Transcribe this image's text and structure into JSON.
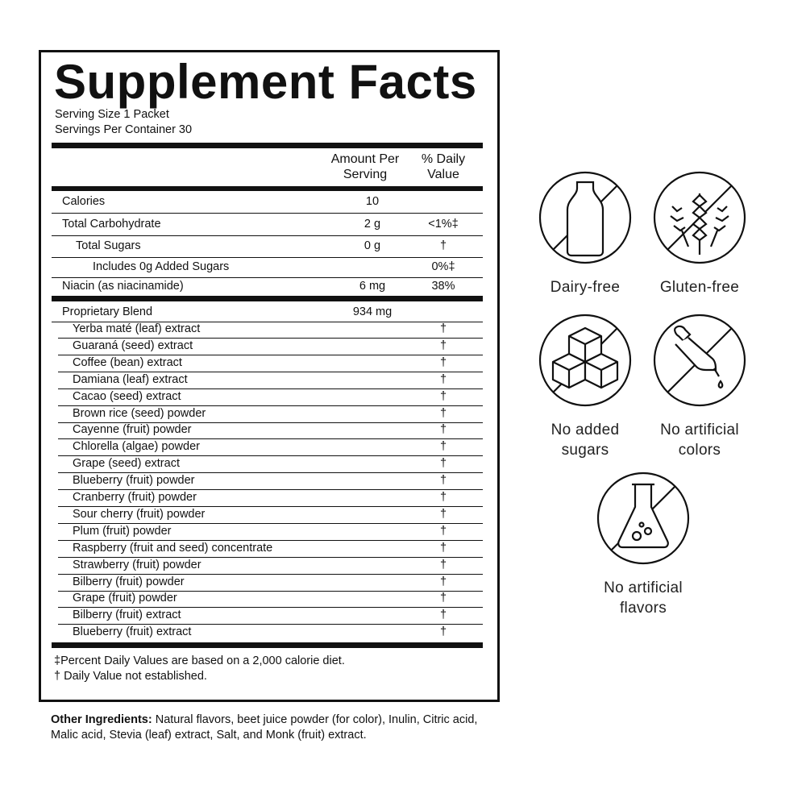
{
  "title": "Supplement Facts",
  "serving_size": "Serving Size 1 Packet",
  "servings_per_container": "Servings Per Container 30",
  "header": {
    "amount": "Amount Per Serving",
    "dv": "% Daily Value"
  },
  "nutrients": [
    {
      "name": "Calories",
      "amount": "10",
      "dv": "",
      "indent": 0
    },
    {
      "name": "Total Carbohydrate",
      "amount": "2 g",
      "dv": "<1%‡",
      "indent": 0
    },
    {
      "name": "Total Sugars",
      "amount": "0 g",
      "dv": "†",
      "indent": 1
    },
    {
      "name": "Includes 0g Added Sugars",
      "amount": "",
      "dv": "0%‡",
      "indent": 2
    },
    {
      "name": "Niacin (as niacinamide)",
      "amount": "6 mg",
      "dv": "38%",
      "indent": 0
    }
  ],
  "blend": {
    "name": "Proprietary Blend",
    "amount": "934 mg",
    "ingredients": [
      {
        "name": "Yerba maté (leaf) extract",
        "dv": "†"
      },
      {
        "name": "Guaraná (seed) extract",
        "dv": "†"
      },
      {
        "name": "Coffee (bean) extract",
        "dv": "†"
      },
      {
        "name": "Damiana (leaf) extract",
        "dv": "†"
      },
      {
        "name": "Cacao (seed) extract",
        "dv": "†"
      },
      {
        "name": "Brown rice (seed) powder",
        "dv": "†"
      },
      {
        "name": "Cayenne (fruit) powder",
        "dv": "†"
      },
      {
        "name": "Chlorella (algae) powder",
        "dv": "†"
      },
      {
        "name": "Grape (seed) extract",
        "dv": "†"
      },
      {
        "name": "Blueberry (fruit) powder",
        "dv": "†"
      },
      {
        "name": "Cranberry (fruit) powder",
        "dv": "†"
      },
      {
        "name": "Sour cherry (fruit) powder",
        "dv": "†"
      },
      {
        "name": "Plum (fruit) powder",
        "dv": "†"
      },
      {
        "name": "Raspberry (fruit and seed) concentrate",
        "dv": "†"
      },
      {
        "name": "Strawberry (fruit) powder",
        "dv": "†"
      },
      {
        "name": "Bilberry (fruit) powder",
        "dv": "†"
      },
      {
        "name": "Grape (fruit) powder",
        "dv": "†"
      },
      {
        "name": "Bilberry (fruit) extract",
        "dv": "†"
      },
      {
        "name": "Blueberry (fruit) extract",
        "dv": "†"
      }
    ]
  },
  "footnotes": [
    "‡Percent Daily Values are based on a 2,000 calorie diet.",
    "† Daily Value not established."
  ],
  "other_ingredients": {
    "label": "Other Ingredients:",
    "text": " Natural flavors, beet juice powder (for color), Inulin, Citric acid, Malic acid, Stevia (leaf) extract, Salt, and Monk (fruit) extract."
  },
  "badges": [
    {
      "icon": "no-milk-bottle-icon",
      "label": "Dairy-free"
    },
    {
      "icon": "no-wheat-icon",
      "label": "Gluten-free"
    },
    {
      "icon": "no-sugar-cubes-icon",
      "label": "No added sugars"
    },
    {
      "icon": "no-dropper-icon",
      "label": "No artificial colors"
    },
    {
      "icon": "no-flask-icon",
      "label": "No artificial flavors"
    }
  ]
}
